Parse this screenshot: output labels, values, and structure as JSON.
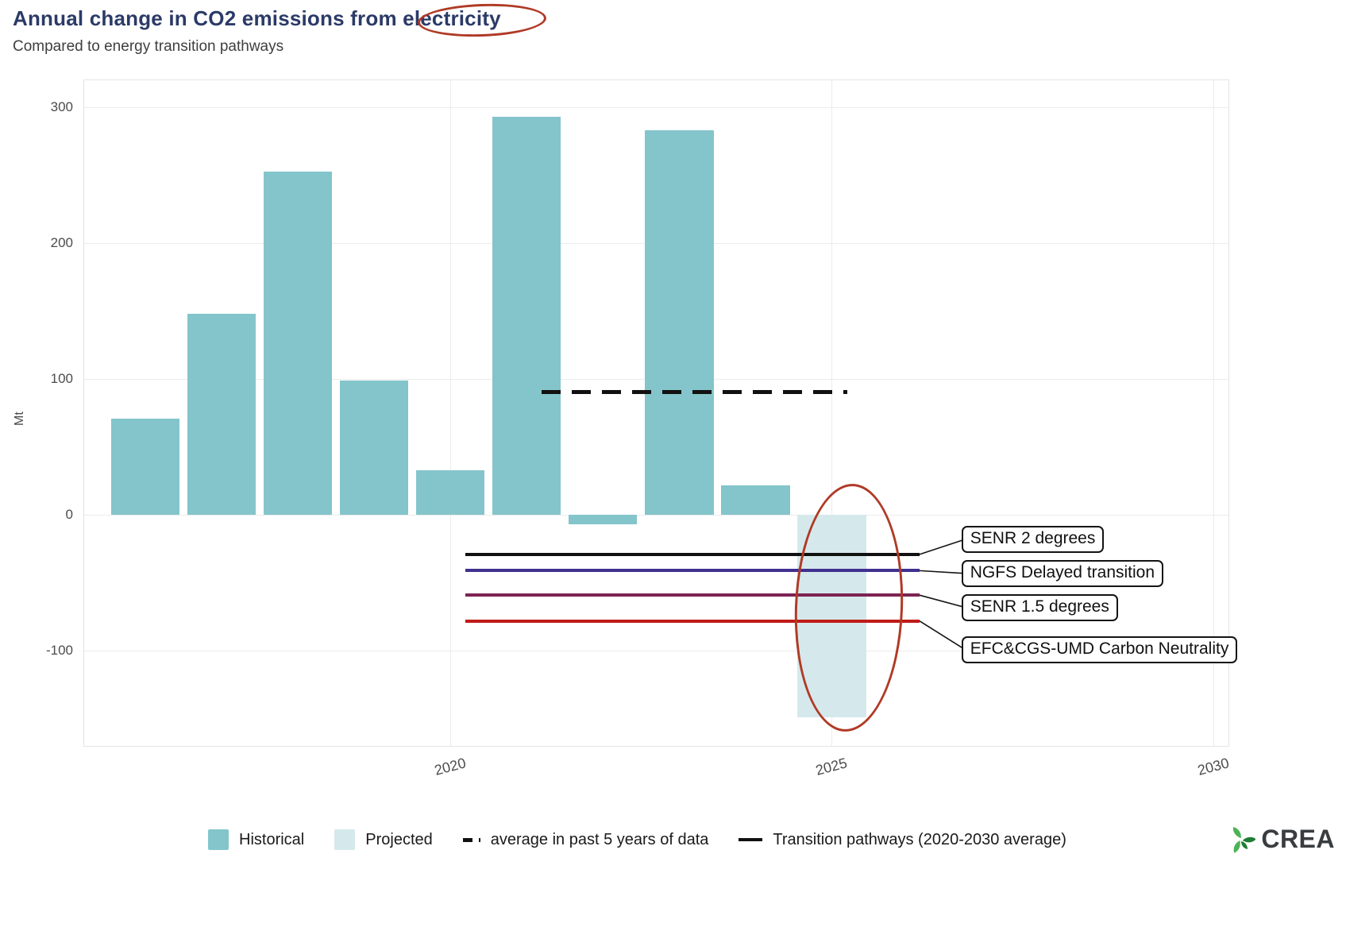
{
  "header": {
    "title": "Annual change in CO2 emissions from electricity",
    "subtitle": "Compared to energy transition pathways"
  },
  "chart_data": {
    "type": "bar",
    "title": "Annual change in CO2 emissions from electricity",
    "subtitle": "Compared to energy transition pathways",
    "xlabel": "",
    "ylabel": "Mt",
    "xlim": [
      2015.2,
      2030.2
    ],
    "ylim": [
      -170,
      320
    ],
    "x_ticks": [
      2020,
      2025,
      2030
    ],
    "y_ticks": [
      300,
      200,
      100,
      0,
      -100
    ],
    "grid": true,
    "bar_width": 0.9,
    "series": [
      {
        "name": "Historical",
        "color": "#83c5cb",
        "points": [
          [
            2016,
            71
          ],
          [
            2017,
            148
          ],
          [
            2018,
            253
          ],
          [
            2019,
            99
          ],
          [
            2020,
            33
          ],
          [
            2021,
            293
          ],
          [
            2022,
            -7
          ],
          [
            2023,
            283
          ],
          [
            2024,
            22
          ]
        ]
      },
      {
        "name": "Projected",
        "color": "#d5e9ec",
        "points": [
          [
            2025,
            -149
          ]
        ]
      }
    ],
    "reference_lines": [
      {
        "name": "average in past 5 years of data",
        "value": 90,
        "x_start": 2021.2,
        "x_end": 2025.2,
        "style": "dashed",
        "color": "#111111",
        "callout": false
      },
      {
        "name": "SENR 2 degrees",
        "value": -29,
        "x_start": 2020.2,
        "x_end": 2026.15,
        "style": "solid",
        "color": "#111111",
        "callout": true,
        "label_x": 2026.7,
        "label_value": -18
      },
      {
        "name": "NGFS Delayed transition",
        "value": -41,
        "x_start": 2020.2,
        "x_end": 2026.15,
        "style": "solid",
        "color": "#40308f",
        "callout": true,
        "label_x": 2026.7,
        "label_value": -43
      },
      {
        "name": "SENR 1.5 degrees",
        "value": -59,
        "x_start": 2020.2,
        "x_end": 2026.15,
        "style": "solid",
        "color": "#7d2352",
        "callout": true,
        "label_x": 2026.7,
        "label_value": -68
      },
      {
        "name": "EFC&CGS-UMD Carbon Neutrality",
        "value": -78,
        "x_start": 2020.2,
        "x_end": 2026.15,
        "style": "solid",
        "color": "#bf1b17",
        "callout": true,
        "label_x": 2026.7,
        "label_value": -99
      }
    ],
    "annotations": [
      {
        "type": "ellipse",
        "color": "#b03a26",
        "target": "title word 'electricity'"
      },
      {
        "type": "ellipse",
        "color": "#b03a26",
        "target": "2025 projected bar and pathway lines"
      }
    ],
    "legend_position": "bottom"
  },
  "legend": {
    "items": [
      {
        "glyph": "swatch",
        "color": "#83c5cb",
        "label": "Historical"
      },
      {
        "glyph": "swatch",
        "color": "#d5e9ec",
        "label": "Projected"
      },
      {
        "glyph": "dashed-line",
        "color": "#111111",
        "label": "average in past 5 years of data"
      },
      {
        "glyph": "solid-line",
        "color": "#111111",
        "label": "Transition pathways (2020-2030 average)"
      }
    ]
  },
  "logo": {
    "text": "CREA",
    "icon_green_dark": "#1e7e34",
    "icon_green_light": "#4db257"
  }
}
